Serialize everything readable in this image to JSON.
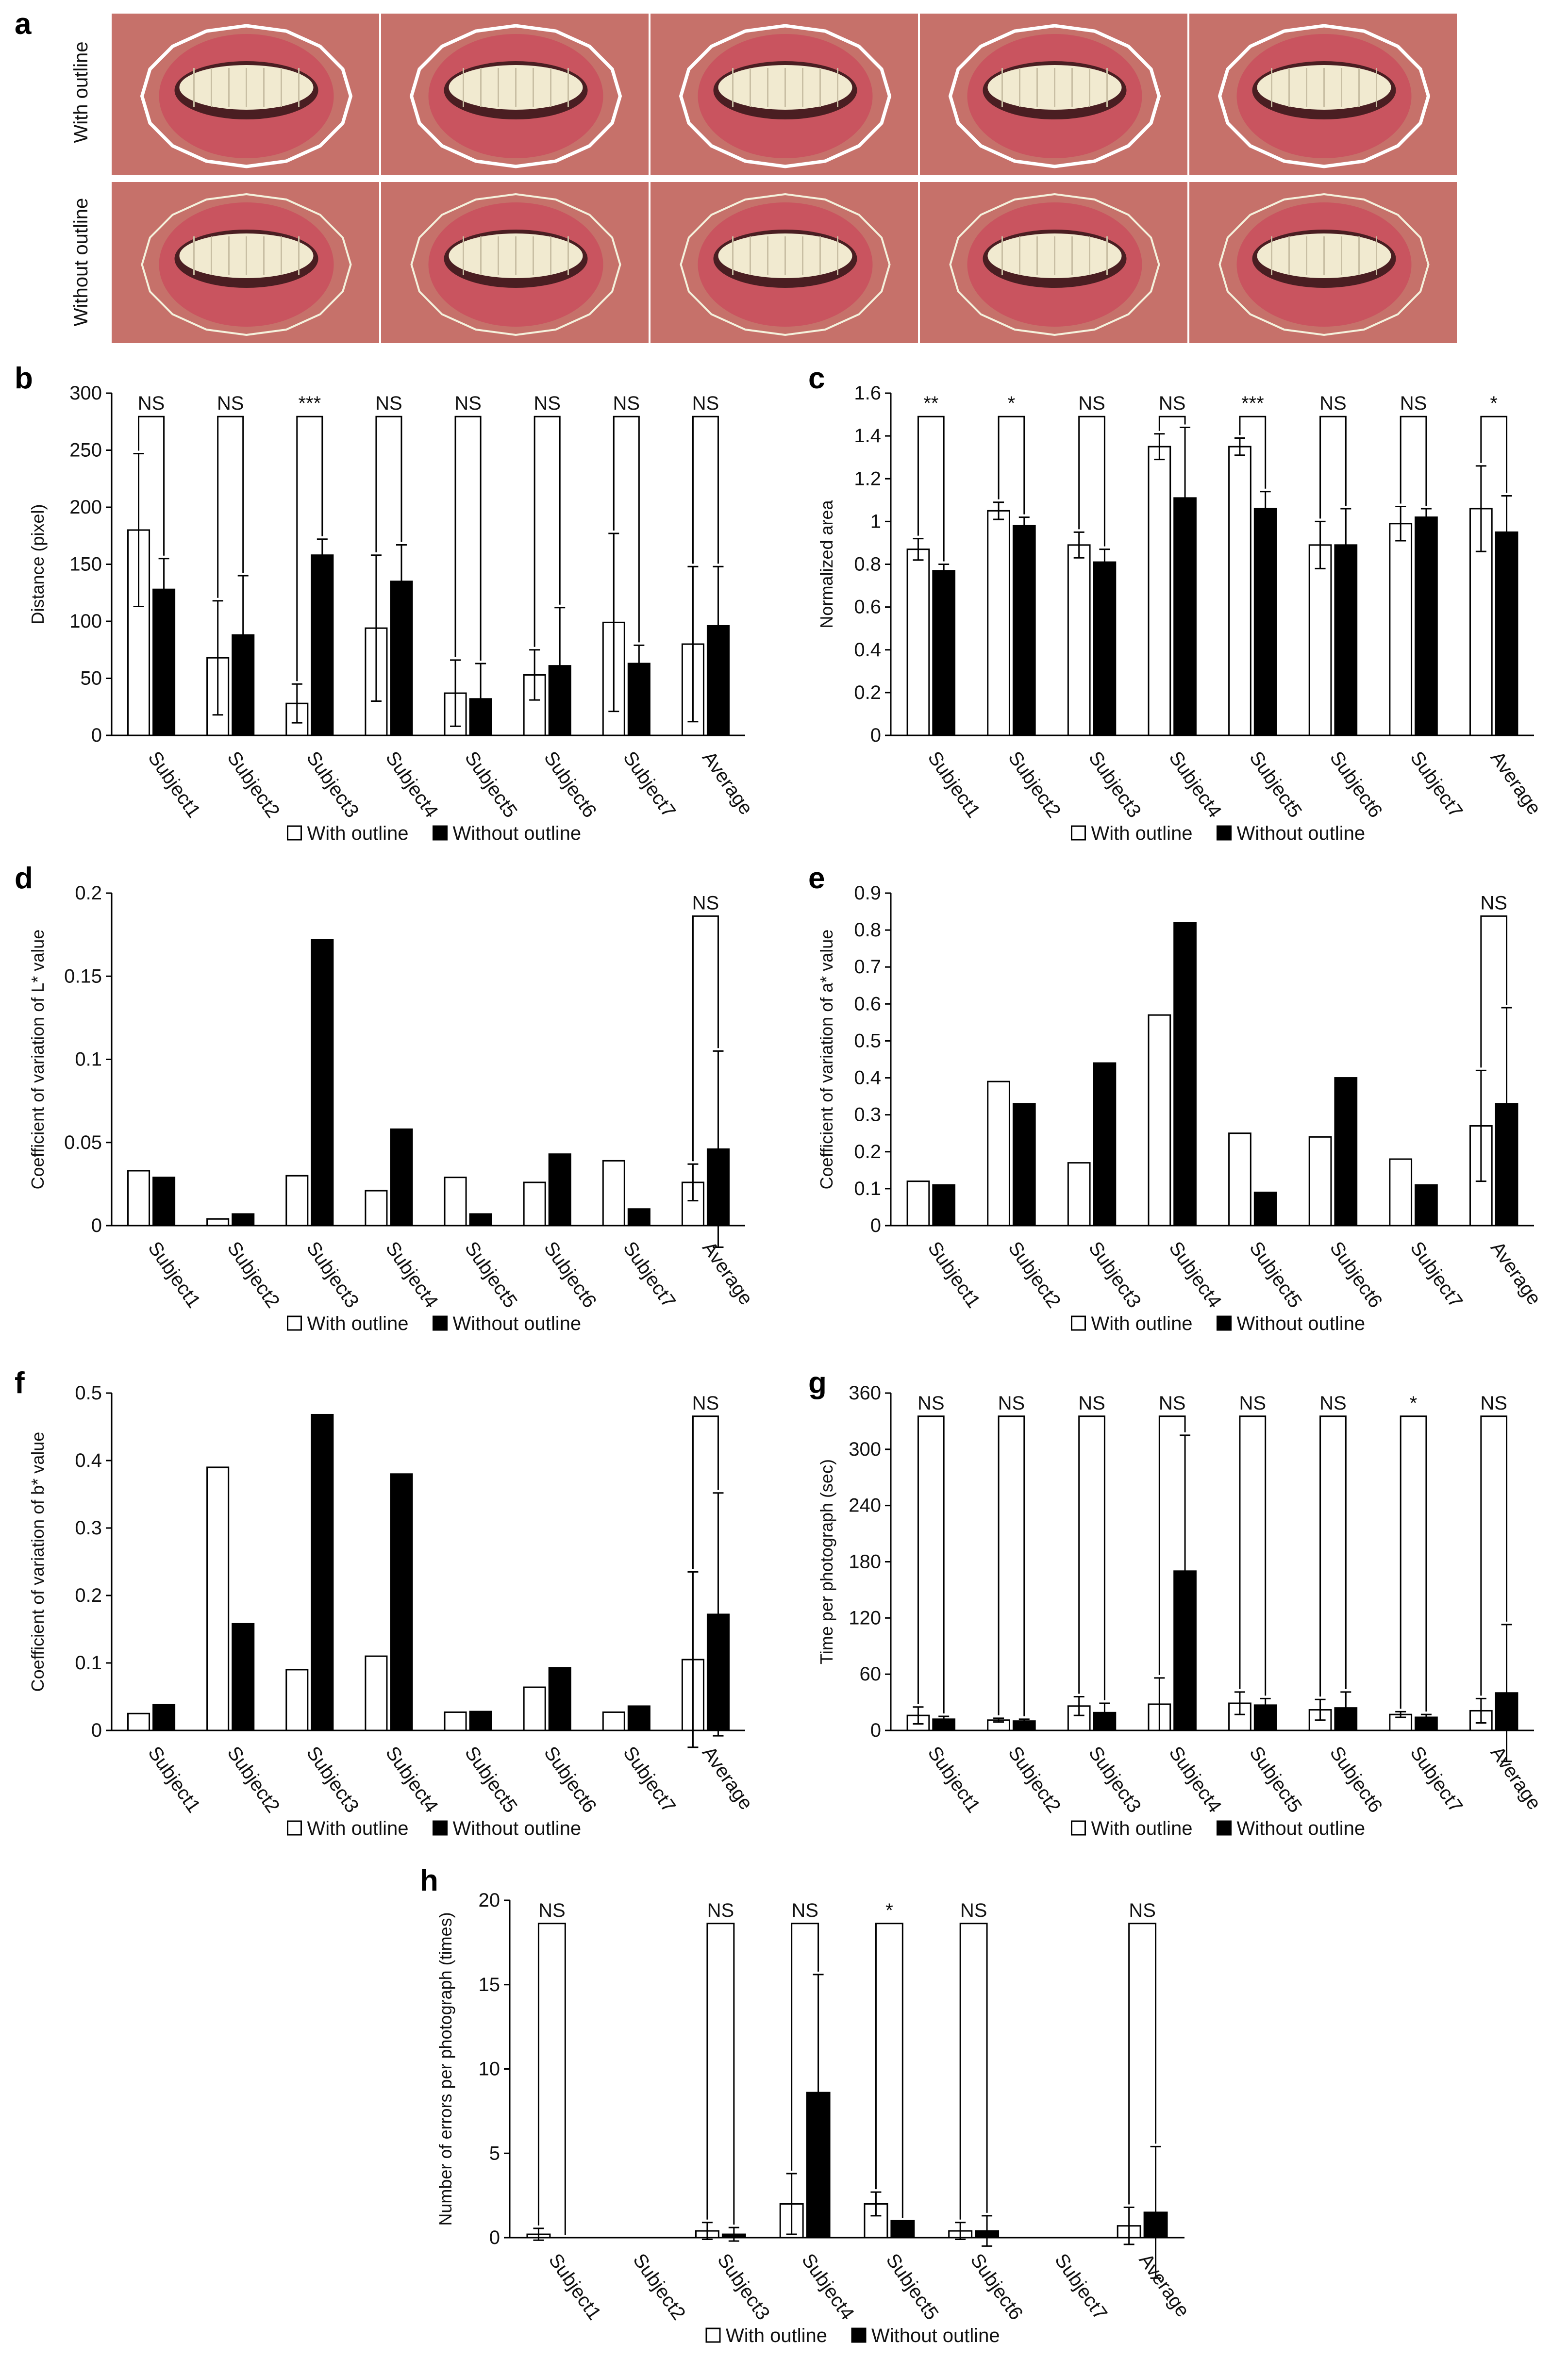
{
  "figure": {
    "legend": {
      "with": "With outline",
      "without": "Without outline"
    },
    "photo_panel": {
      "letter": "a",
      "rows": [
        {
          "label": "With outline",
          "count": 5,
          "outline_color": "#ffffff"
        },
        {
          "label": "Without outline",
          "count": 5,
          "outline_color": "#f4f1dc"
        }
      ],
      "colors": {
        "skin": "#c6716a",
        "lip": "#c9545f",
        "teeth": "#f1ead0"
      }
    }
  },
  "chart_data": [
    {
      "id": "b",
      "letter": "b",
      "type": "bar",
      "ylabel": "Distance (pixel)",
      "ylim": [
        0,
        300
      ],
      "yticks": [
        0,
        50,
        100,
        150,
        200,
        250,
        300
      ],
      "categories": [
        "Subject1",
        "Subject2",
        "Subject3",
        "Subject4",
        "Subject5",
        "Subject6",
        "Subject7",
        "Average"
      ],
      "series": [
        {
          "name": "With outline",
          "fill": "#ffffff",
          "values": [
            180,
            68,
            28,
            94,
            37,
            53,
            99,
            80
          ],
          "errors": [
            67,
            50,
            17,
            64,
            29,
            22,
            78,
            68
          ]
        },
        {
          "name": "Without outline",
          "fill": "#000000",
          "values": [
            128,
            88,
            158,
            135,
            32,
            61,
            63,
            96
          ],
          "errors": [
            27,
            52,
            14,
            32,
            31,
            51,
            16,
            52
          ]
        }
      ],
      "significance": [
        "NS",
        "NS",
        "***",
        "NS",
        "NS",
        "NS",
        "NS",
        "NS"
      ]
    },
    {
      "id": "c",
      "letter": "c",
      "type": "bar",
      "ylabel": "Normalized area",
      "ylim": [
        0,
        1.6
      ],
      "yticks": [
        0,
        0.2,
        0.4,
        0.6,
        0.8,
        1,
        1.2,
        1.4,
        1.6
      ],
      "categories": [
        "Subject1",
        "Subject2",
        "Subject3",
        "Subject4",
        "Subject5",
        "Subject6",
        "Subject7",
        "Average"
      ],
      "series": [
        {
          "name": "With outline",
          "fill": "#ffffff",
          "values": [
            0.87,
            1.05,
            0.89,
            1.35,
            1.35,
            0.89,
            0.99,
            1.06
          ],
          "errors": [
            0.05,
            0.04,
            0.06,
            0.06,
            0.04,
            0.11,
            0.08,
            0.2
          ]
        },
        {
          "name": "Without outline",
          "fill": "#000000",
          "values": [
            0.77,
            0.98,
            0.81,
            1.11,
            1.06,
            0.89,
            1.02,
            0.95
          ],
          "errors": [
            0.03,
            0.04,
            0.06,
            0.33,
            0.08,
            0.17,
            0.04,
            0.17
          ]
        }
      ],
      "significance": [
        "**",
        "*",
        "NS",
        "NS",
        "***",
        "NS",
        "NS",
        "*"
      ]
    },
    {
      "id": "d",
      "letter": "d",
      "type": "bar",
      "ylabel": "Coefficient of variation of L* value",
      "ylim": [
        0,
        0.2
      ],
      "yticks": [
        0,
        0.05,
        0.1,
        0.15,
        0.2
      ],
      "ytick_labels": [
        "0",
        "0.05",
        "0.1",
        "0.15",
        "0.2"
      ],
      "categories": [
        "Subject1",
        "Subject2",
        "Subject3",
        "Subject4",
        "Subject5",
        "Subject6",
        "Subject7",
        "Average"
      ],
      "series": [
        {
          "name": "With outline",
          "fill": "#ffffff",
          "values": [
            0.033,
            0.004,
            0.03,
            0.021,
            0.029,
            0.026,
            0.039,
            0.026
          ],
          "errors": [
            null,
            null,
            null,
            null,
            null,
            null,
            null,
            0.011
          ]
        },
        {
          "name": "Without outline",
          "fill": "#000000",
          "values": [
            0.029,
            0.007,
            0.172,
            0.058,
            0.007,
            0.043,
            0.01,
            0.046
          ],
          "errors": [
            null,
            null,
            null,
            null,
            null,
            null,
            null,
            0.059
          ]
        }
      ],
      "significance": [
        null,
        null,
        null,
        null,
        null,
        null,
        null,
        "NS"
      ]
    },
    {
      "id": "e",
      "letter": "e",
      "type": "bar",
      "ylabel": "Coefficient of variation of a* value",
      "ylim": [
        0,
        0.9
      ],
      "yticks": [
        0,
        0.1,
        0.2,
        0.3,
        0.4,
        0.5,
        0.6,
        0.7,
        0.8,
        0.9
      ],
      "categories": [
        "Subject1",
        "Subject2",
        "Subject3",
        "Subject4",
        "Subject5",
        "Subject6",
        "Subject7",
        "Average"
      ],
      "series": [
        {
          "name": "With outline",
          "fill": "#ffffff",
          "values": [
            0.12,
            0.39,
            0.17,
            0.57,
            0.25,
            0.24,
            0.18,
            0.27
          ],
          "errors": [
            null,
            null,
            null,
            null,
            null,
            null,
            null,
            0.15
          ]
        },
        {
          "name": "Without outline",
          "fill": "#000000",
          "values": [
            0.11,
            0.33,
            0.44,
            0.82,
            0.09,
            0.4,
            0.11,
            0.33
          ],
          "errors": [
            null,
            null,
            null,
            null,
            null,
            null,
            null,
            0.26
          ]
        }
      ],
      "significance": [
        null,
        null,
        null,
        null,
        null,
        null,
        null,
        "NS"
      ]
    },
    {
      "id": "f",
      "letter": "f",
      "type": "bar",
      "ylabel": "Coefficient of variation of b* value",
      "ylim": [
        0,
        0.5
      ],
      "yticks": [
        0,
        0.1,
        0.2,
        0.3,
        0.4,
        0.5
      ],
      "categories": [
        "Subject1",
        "Subject2",
        "Subject3",
        "Subject4",
        "Subject5",
        "Subject6",
        "Subject7",
        "Average"
      ],
      "series": [
        {
          "name": "With outline",
          "fill": "#ffffff",
          "values": [
            0.025,
            0.39,
            0.09,
            0.11,
            0.027,
            0.064,
            0.027,
            0.105
          ],
          "errors": [
            null,
            null,
            null,
            null,
            null,
            null,
            null,
            0.13
          ]
        },
        {
          "name": "Without outline",
          "fill": "#000000",
          "values": [
            0.038,
            0.158,
            0.468,
            0.38,
            0.028,
            0.093,
            0.036,
            0.172
          ],
          "errors": [
            null,
            null,
            null,
            null,
            null,
            null,
            null,
            0.18
          ]
        }
      ],
      "significance": [
        null,
        null,
        null,
        null,
        null,
        null,
        null,
        "NS"
      ]
    },
    {
      "id": "g",
      "letter": "g",
      "type": "bar",
      "ylabel": "Time per photograph (sec)",
      "ylim": [
        0,
        360
      ],
      "yticks": [
        0,
        60,
        120,
        180,
        240,
        300,
        360
      ],
      "categories": [
        "Subject1",
        "Subject2",
        "Subject3",
        "Subject4",
        "Subject5",
        "Subject6",
        "Subject7",
        "Average"
      ],
      "series": [
        {
          "name": "With outline",
          "fill": "#ffffff",
          "values": [
            16,
            11,
            26,
            28,
            29,
            22,
            17,
            21
          ],
          "errors": [
            9,
            2,
            10,
            28,
            12,
            11,
            3,
            13
          ]
        },
        {
          "name": "Without outline",
          "fill": "#000000",
          "values": [
            12,
            10,
            19,
            170,
            27,
            24,
            14,
            40
          ],
          "errors": [
            3,
            2,
            10,
            145,
            7,
            17,
            3,
            73
          ]
        }
      ],
      "significance": [
        "NS",
        "NS",
        "NS",
        "NS",
        "NS",
        "NS",
        "*",
        "NS"
      ]
    },
    {
      "id": "h",
      "letter": "h",
      "type": "bar",
      "ylabel": "Number of errors per photograph (times)",
      "ylim": [
        0,
        20
      ],
      "yticks": [
        0,
        5,
        10,
        15,
        20
      ],
      "categories": [
        "Subject1",
        "Subject2",
        "Subject3",
        "Subject4",
        "Subject5",
        "Subject6",
        "Subject7",
        "Average"
      ],
      "series": [
        {
          "name": "With outline",
          "fill": "#ffffff",
          "values": [
            0.2,
            0,
            0.4,
            2,
            2,
            0.4,
            0,
            0.7
          ],
          "errors": [
            0.35,
            null,
            0.5,
            1.8,
            0.7,
            0.5,
            null,
            1.1
          ]
        },
        {
          "name": "Without outline",
          "fill": "#000000",
          "values": [
            0,
            0,
            0.2,
            8.6,
            1,
            0.4,
            0,
            1.5
          ],
          "errors": [
            null,
            null,
            0.4,
            7,
            null,
            0.9,
            null,
            3.9
          ]
        }
      ],
      "significance": [
        "NS",
        null,
        "NS",
        "NS",
        "*",
        "NS",
        null,
        "NS"
      ]
    }
  ]
}
